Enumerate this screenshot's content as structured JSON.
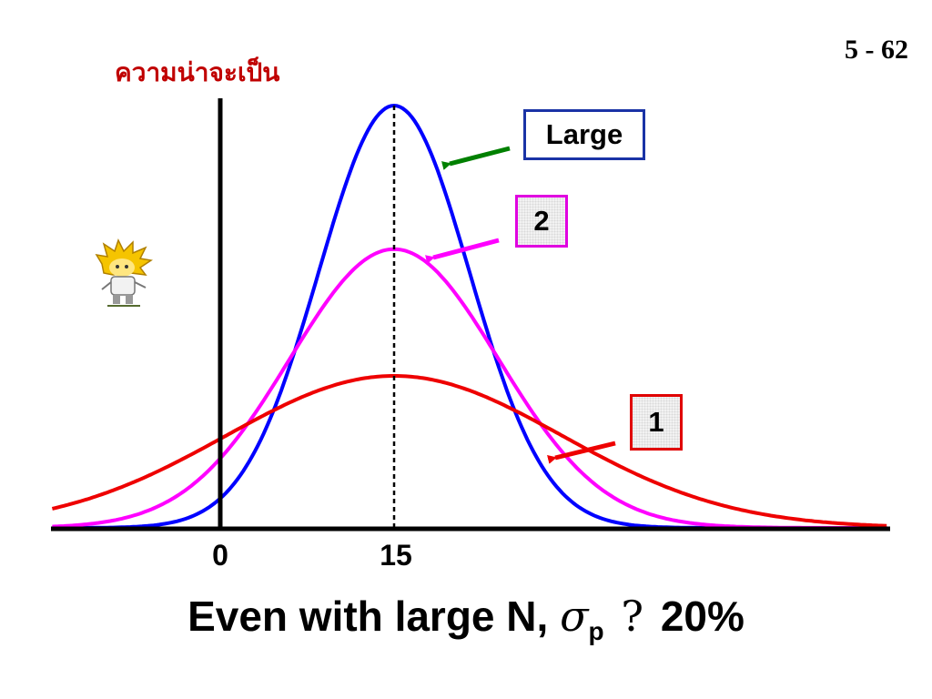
{
  "slide": {
    "number": "5 - 62"
  },
  "axis": {
    "y_label": "ความน่าจะเป็น",
    "y_label_color": "#c00000"
  },
  "caption": {
    "prefix": "Even with large N,",
    "sigma": "σ",
    "subscript": "p",
    "relation": "?",
    "value": "20%"
  },
  "chart_data": {
    "type": "line",
    "title": "",
    "xlabel": "",
    "ylabel": "ความน่าจะเป็น",
    "x_ticks": [
      {
        "value": 0,
        "label": "0"
      },
      {
        "value": 15,
        "label": "15"
      }
    ],
    "mean": 15,
    "mean_line": {
      "style": "dashed",
      "color": "#000000"
    },
    "xlim": [
      -14.5,
      57.5
    ],
    "series": [
      {
        "name": "Large",
        "mean": 15,
        "sd": 6.5,
        "color": "#0000ff",
        "peak_rel": 1.0
      },
      {
        "name": "2",
        "mean": 15,
        "sd": 9.0,
        "color": "#ff00ff",
        "peak_rel": 0.66
      },
      {
        "name": "1",
        "mean": 15,
        "sd": 14.5,
        "color": "#ee0000",
        "peak_rel": 0.36
      }
    ],
    "legend_boxes": [
      {
        "label": "Large",
        "border": "#1a33a6",
        "arrow_color": "#008000"
      },
      {
        "label": "2",
        "border": "#e000e0",
        "arrow_color": "#ff00ff"
      },
      {
        "label": "1",
        "border": "#e00000",
        "arrow_color": "#ee0000"
      }
    ]
  }
}
